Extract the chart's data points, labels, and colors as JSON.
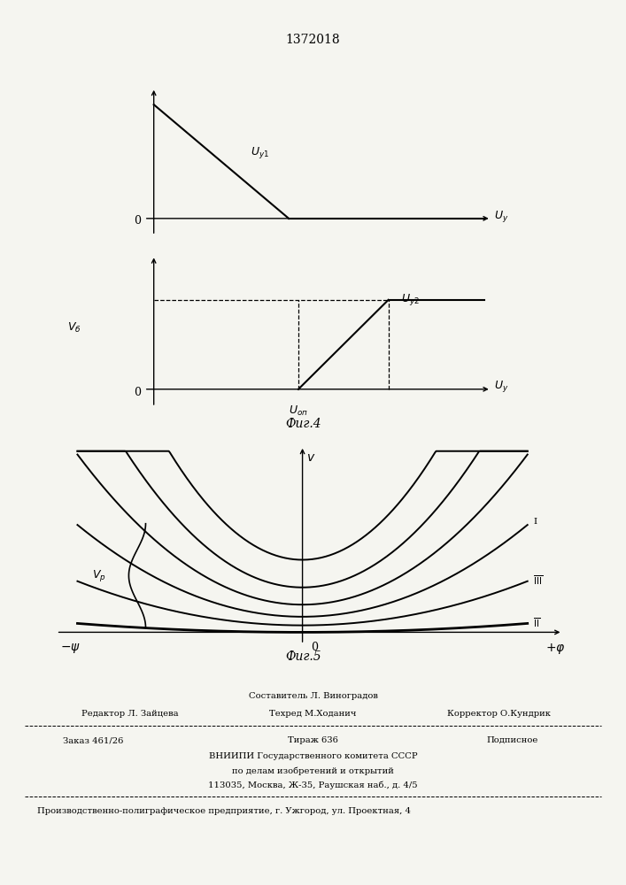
{
  "patent_number": "1372018",
  "fig4_caption": "Фиг.4",
  "fig5_caption": "Фиг.5",
  "bg_color": "#f5f5f0",
  "line_color": "#000000",
  "footer": {
    "line1_center": "Составитель Л. Виноградов",
    "line2_left": "Редактор Л. Зайцева",
    "line2_center": "Техред М.Ходанич",
    "line2_right": "Корректор О.Кундрик",
    "line3_left": "Заказ 461/26",
    "line3_center": "Тираж 636",
    "line3_right": "Подписное",
    "line4": "ВНИИПИ Государственного комитета СССР",
    "line5": "по делам изобретений и открытий",
    "line6": "113035, Москва, Ж-35, Раушская наб., д. 4/5",
    "line7": "Производственно-полиграфическое предприятие, г. Ужгород, ул. Проектная, 4"
  }
}
